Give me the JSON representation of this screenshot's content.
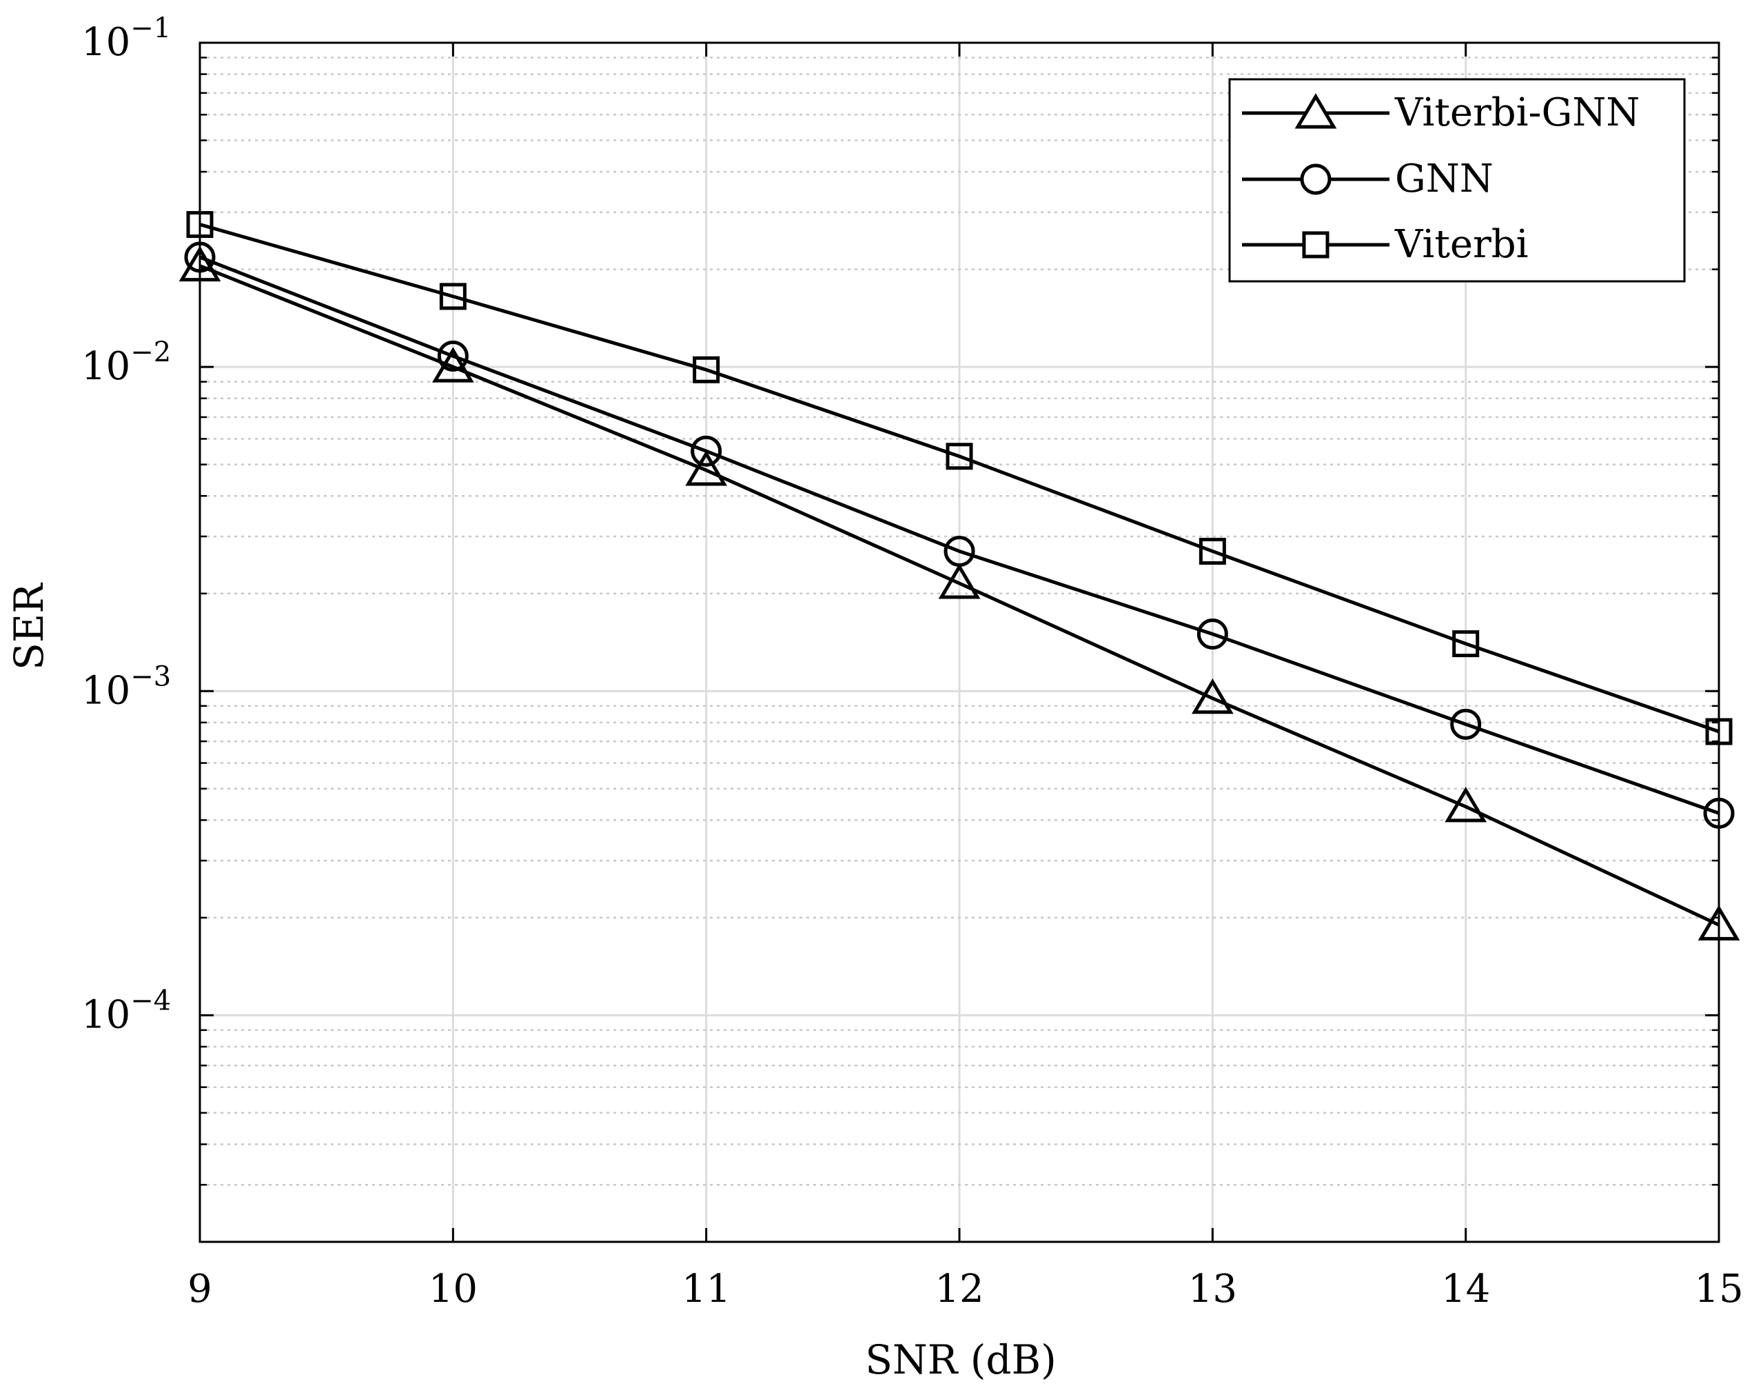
{
  "chart_data": {
    "type": "line",
    "title": "",
    "xlabel": "SNR (dB)",
    "ylabel": "SER",
    "yscale": "log",
    "x": [
      9,
      10,
      11,
      12,
      13,
      14,
      15
    ],
    "xlim": [
      9,
      15
    ],
    "ylim": [
      2e-05,
      0.1
    ],
    "xticks": [
      "9",
      "10",
      "11",
      "12",
      "13",
      "14",
      "15"
    ],
    "yticks": [
      {
        "base": "10",
        "exp": "−1",
        "value": 0.1
      },
      {
        "base": "10",
        "exp": "−2",
        "value": 0.01
      },
      {
        "base": "10",
        "exp": "−3",
        "value": 0.001
      },
      {
        "base": "10",
        "exp": "−4",
        "value": 0.0001
      }
    ],
    "grid": true,
    "minor_grid": true,
    "legend_position": "top-right",
    "series": [
      {
        "name": "Viterbi-GNN",
        "marker": "triangle",
        "color": "#000000",
        "values": [
          0.0205,
          0.01,
          0.0048,
          0.00215,
          0.00095,
          0.00044,
          0.00019
        ]
      },
      {
        "name": "GNN",
        "marker": "circle",
        "color": "#000000",
        "values": [
          0.0218,
          0.0108,
          0.0055,
          0.0027,
          0.0015,
          0.00079,
          0.00042
        ]
      },
      {
        "name": "Viterbi",
        "marker": "square",
        "color": "#000000",
        "values": [
          0.0275,
          0.0165,
          0.0098,
          0.0053,
          0.0027,
          0.0014,
          0.00075
        ]
      }
    ]
  }
}
